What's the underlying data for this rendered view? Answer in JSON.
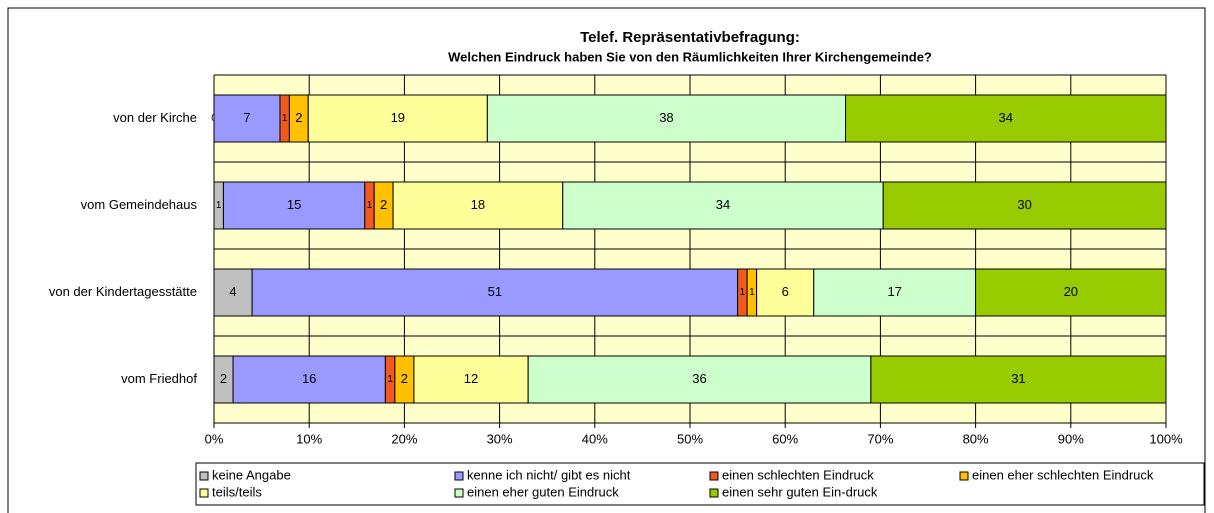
{
  "chart_data": {
    "type": "bar",
    "orientation": "horizontal",
    "stacking": "percent",
    "title": "Telef. Repräsentativbefragung:",
    "subtitle": "Welchen Eindruck haben Sie von den Räumlichkeiten Ihrer Kirchengemeinde?",
    "categories": [
      "von der Kirche",
      "vom Gemeindehaus",
      "von der Kindertagesstätte",
      "vom Friedhof"
    ],
    "series": [
      {
        "name": "keine Angabe",
        "color": "#c0c0c0",
        "values": [
          0,
          1,
          4,
          2
        ]
      },
      {
        "name": "kenne ich nicht/ gibt es nicht",
        "color": "#9999ff",
        "values": [
          7,
          15,
          51,
          16
        ]
      },
      {
        "name": "einen schlechten Eindruck",
        "color": "#f05a1e",
        "values": [
          1,
          1,
          1,
          1
        ]
      },
      {
        "name": "einen eher schlechten Eindruck",
        "color": "#ffc000",
        "values": [
          2,
          2,
          1,
          2
        ]
      },
      {
        "name": "teils/teils",
        "color": "#ffff99",
        "values": [
          19,
          18,
          6,
          12
        ]
      },
      {
        "name": "einen eher guten Eindruck",
        "color": "#ccffcc",
        "values": [
          38,
          34,
          17,
          36
        ]
      },
      {
        "name": "einen sehr guten Ein-druck",
        "color": "#99cc00",
        "values": [
          34,
          30,
          20,
          31
        ]
      }
    ],
    "xlim": [
      0,
      100
    ],
    "xticks": [
      {
        "value": 0,
        "label": "0%"
      },
      {
        "value": 10,
        "label": "10%"
      },
      {
        "value": 20,
        "label": "20%"
      },
      {
        "value": 30,
        "label": "30%"
      },
      {
        "value": 40,
        "label": "40%"
      },
      {
        "value": 50,
        "label": "50%"
      },
      {
        "value": 60,
        "label": "60%"
      },
      {
        "value": 70,
        "label": "70%"
      },
      {
        "value": 80,
        "label": "80%"
      },
      {
        "value": 90,
        "label": "90%"
      },
      {
        "value": 100,
        "label": "100%"
      }
    ],
    "grid": true,
    "legend": "bottom"
  }
}
